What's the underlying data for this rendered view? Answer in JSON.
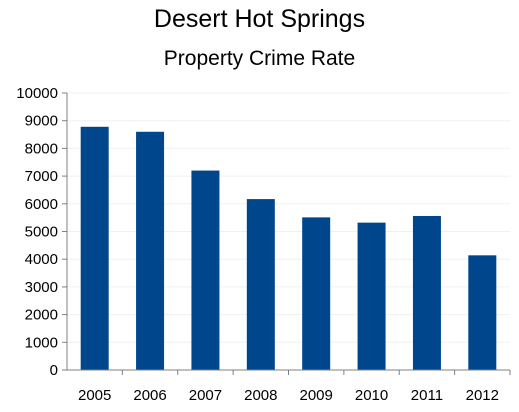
{
  "chart_data": {
    "type": "bar",
    "title": "Desert Hot Springs",
    "subtitle": "Property Crime Rate",
    "xlabel": "",
    "ylabel": "",
    "categories": [
      "2005",
      "2006",
      "2007",
      "2008",
      "2009",
      "2010",
      "2011",
      "2012"
    ],
    "values": [
      8780,
      8600,
      7200,
      6170,
      5510,
      5320,
      5560,
      4140
    ],
    "ylim": [
      0,
      10000
    ],
    "yticks": [
      "0",
      "1000",
      "2000",
      "3000",
      "4000",
      "5000",
      "6000",
      "7000",
      "8000",
      "9000",
      "10000"
    ],
    "grid": true,
    "legend": "none",
    "bar_color": "#00468c"
  }
}
